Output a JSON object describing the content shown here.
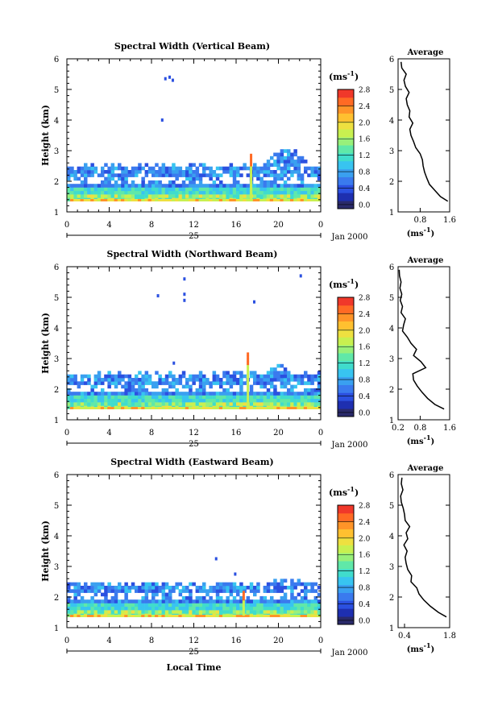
{
  "palette": [
    "#2a2a6a",
    "#1e2fb0",
    "#2b50e0",
    "#3a7aee",
    "#3aa0f0",
    "#38c4f0",
    "#40dccc",
    "#60e8a8",
    "#98f07a",
    "#c8f050",
    "#eee040",
    "#ffc030",
    "#ff9428",
    "#ff6a24",
    "#f0382a"
  ],
  "xlabel": "Local Time",
  "date_label": "Jan 2000",
  "day_label": "25",
  "x_ticks": [
    "0",
    "4",
    "8",
    "12",
    "16",
    "20",
    "0"
  ],
  "y_ticks": [
    "1",
    "2",
    "3",
    "4",
    "5",
    "6"
  ],
  "ylabel": "Height (km)",
  "colorbar_unit": "(ms",
  "colorbar_unit_exp": "-1",
  "colorbar_unit_close": ")",
  "avg_title": "Average",
  "avg_unit": "(ms",
  "avg_unit_exp": "-1",
  "avg_unit_close": ")",
  "chart_data": [
    {
      "type": "heatmap",
      "title": "Spectral Width (Vertical Beam)",
      "ylabel": "Height (km)",
      "xlabel": "",
      "xlim": [
        0,
        24
      ],
      "ylim": [
        1,
        6
      ],
      "colorbar_ticks": [
        "0.0",
        "0.4",
        "0.8",
        "1.2",
        "1.6",
        "2.0",
        "2.4",
        "2.8"
      ],
      "colorbar_range": [
        0,
        2.8
      ],
      "top_km": 2.45,
      "scatter_points": [
        [
          9.2,
          5.35
        ],
        [
          9.6,
          5.4
        ],
        [
          9.9,
          5.3
        ],
        [
          8.9,
          4.0
        ]
      ],
      "spike": {
        "t": 17.3,
        "top_km": 2.9
      },
      "bump": {
        "t0": 18.5,
        "t1": 23.0,
        "top_km": 3.0
      },
      "average": {
        "xlim": [
          0.2,
          1.6
        ],
        "x_ticks": [
          "0.8",
          "1.6"
        ],
        "x_tick_values": [
          0.8,
          1.6
        ],
        "profile_km": [
          1.35,
          1.5,
          1.7,
          1.9,
          2.1,
          2.3,
          2.5,
          2.7,
          2.9,
          3.1,
          3.3,
          3.5,
          3.7,
          3.9,
          4.1,
          4.3,
          4.5,
          4.7,
          4.9,
          5.1,
          5.3,
          5.5,
          5.7,
          5.9
        ],
        "profile_val": [
          1.55,
          1.35,
          1.2,
          1.05,
          0.98,
          0.92,
          0.88,
          0.86,
          0.8,
          0.68,
          0.62,
          0.55,
          0.52,
          0.6,
          0.5,
          0.52,
          0.45,
          0.42,
          0.5,
          0.4,
          0.36,
          0.42,
          0.3,
          0.28
        ]
      }
    },
    {
      "type": "heatmap",
      "title": "Spectral Width (Northward Beam)",
      "ylabel": "Height (km)",
      "xlabel": "",
      "xlim": [
        0,
        24
      ],
      "ylim": [
        1,
        6
      ],
      "colorbar_ticks": [
        "0.0",
        "0.4",
        "0.8",
        "1.2",
        "1.6",
        "2.0",
        "2.4",
        "2.8"
      ],
      "colorbar_range": [
        0,
        2.8
      ],
      "top_km": 2.45,
      "scatter_points": [
        [
          11.0,
          5.6
        ],
        [
          8.5,
          5.05
        ],
        [
          11.0,
          5.1
        ],
        [
          11.0,
          4.9
        ],
        [
          17.6,
          4.85
        ],
        [
          22.0,
          5.7
        ],
        [
          10.0,
          2.85
        ]
      ],
      "spike": {
        "t": 17.0,
        "top_km": 3.2
      },
      "bump": {
        "t0": 19.0,
        "t1": 21.0,
        "top_km": 2.8
      },
      "average": {
        "xlim": [
          0.2,
          1.6
        ],
        "x_ticks": [
          "0.2",
          "0.8",
          "1.6"
        ],
        "x_tick_values": [
          0.2,
          0.8,
          1.6
        ],
        "profile_km": [
          1.35,
          1.5,
          1.7,
          1.9,
          2.1,
          2.3,
          2.5,
          2.7,
          2.9,
          3.1,
          3.3,
          3.5,
          3.7,
          3.9,
          4.1,
          4.3,
          4.5,
          4.7,
          4.9,
          5.1,
          5.3,
          5.5,
          5.7,
          5.9
        ],
        "profile_val": [
          1.45,
          1.2,
          1.0,
          0.85,
          0.72,
          0.62,
          0.6,
          0.95,
          0.82,
          0.62,
          0.7,
          0.55,
          0.45,
          0.32,
          0.35,
          0.4,
          0.28,
          0.32,
          0.26,
          0.3,
          0.25,
          0.28,
          0.24,
          0.23
        ]
      }
    },
    {
      "type": "heatmap",
      "title": "Spectral Width (Eastward Beam)",
      "ylabel": "Height (km)",
      "xlabel": "Local Time",
      "xlim": [
        0,
        24
      ],
      "ylim": [
        1,
        6
      ],
      "colorbar_ticks": [
        "0.0",
        "0.4",
        "0.8",
        "1.2",
        "1.6",
        "2.0",
        "2.4",
        "2.8"
      ],
      "colorbar_range": [
        0,
        2.8
      ],
      "top_km": 2.4,
      "scatter_points": [
        [
          14.0,
          3.25
        ],
        [
          15.8,
          2.75
        ]
      ],
      "spike": {
        "t": 16.6,
        "top_km": 2.2
      },
      "bump": {
        "t0": 19.3,
        "t1": 22.0,
        "top_km": 2.55
      },
      "average": {
        "xlim": [
          0.2,
          1.8
        ],
        "x_ticks": [
          "0.4",
          "1.8"
        ],
        "x_tick_values": [
          0.4,
          1.8
        ],
        "profile_km": [
          1.35,
          1.5,
          1.7,
          1.9,
          2.1,
          2.3,
          2.5,
          2.7,
          2.9,
          3.1,
          3.3,
          3.5,
          3.7,
          3.9,
          4.1,
          4.3,
          4.5,
          4.7,
          4.9,
          5.1,
          5.3,
          5.5,
          5.7,
          5.9
        ],
        "profile_val": [
          1.7,
          1.45,
          1.2,
          1.0,
          0.85,
          0.78,
          0.6,
          0.62,
          0.5,
          0.45,
          0.42,
          0.48,
          0.38,
          0.5,
          0.45,
          0.56,
          0.42,
          0.4,
          0.36,
          0.3,
          0.28,
          0.35,
          0.3,
          0.32
        ]
      }
    }
  ]
}
